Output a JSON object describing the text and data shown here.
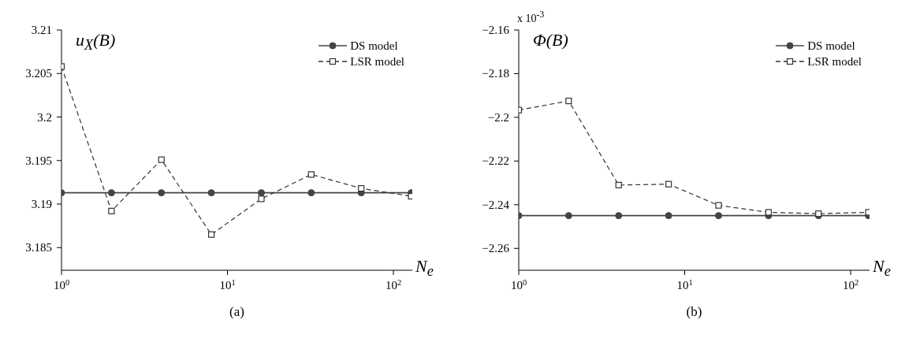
{
  "chart_data": [
    {
      "type": "line",
      "title": "(a)",
      "ylabel": "u$_{X}$(B)",
      "xlabel": "N$_{e}$",
      "log": "x",
      "grid": false,
      "legend": "top right",
      "x": [
        1,
        2,
        4,
        8,
        16,
        32,
        64,
        128
      ],
      "xlim": [
        1,
        130
      ],
      "xticks": [
        {
          "value": 1,
          "label": "10$^{0}$"
        },
        {
          "value": 10,
          "label": "10$^{1}$"
        },
        {
          "value": 100,
          "label": "10$^{2}$"
        }
      ],
      "ylim": [
        3.1824,
        3.21
      ],
      "yticks": [
        3.185,
        3.19,
        3.195,
        3.2,
        3.205,
        3.21
      ],
      "series": [
        {
          "name": "DS model",
          "color": "#444444",
          "marker": "circle",
          "line_style": "solid",
          "values": [
            3.1913,
            3.1913,
            3.1913,
            3.1913,
            3.1913,
            3.1913,
            3.1913,
            3.1913
          ]
        },
        {
          "name": "LSR model",
          "color": "#333333",
          "marker": "square",
          "line_style": "dashed",
          "values": [
            3.2058,
            3.1892,
            3.1951,
            3.1865,
            3.1906,
            3.1934,
            3.1918,
            3.1909
          ]
        }
      ]
    },
    {
      "type": "line",
      "title": "(b)",
      "ylabel": "Φ(B)",
      "xlabel": "N$_{e}$",
      "annotations": [
        "x 10$^{-3}$"
      ],
      "log": "x",
      "grid": false,
      "legend": "top right",
      "x": [
        1,
        2,
        4,
        8,
        16,
        32,
        64,
        128
      ],
      "xlim": [
        1,
        130
      ],
      "xticks": [
        {
          "value": 1,
          "label": "10$^{0}$"
        },
        {
          "value": 10,
          "label": "10$^{1}$"
        },
        {
          "value": 100,
          "label": "10$^{2}$"
        }
      ],
      "ylim": [
        -2.27,
        -2.16
      ],
      "yticks": [
        {
          "value": -2.26,
          "label": "−2.26"
        },
        {
          "value": -2.24,
          "label": "−2.24"
        },
        {
          "value": -2.22,
          "label": "−2.22"
        },
        {
          "value": -2.2,
          "label": "−2.2"
        },
        {
          "value": -2.18,
          "label": "−2.18"
        },
        {
          "value": -2.16,
          "label": "−2.16"
        }
      ],
      "series": [
        {
          "name": "DS model",
          "color": "#444444",
          "marker": "circle",
          "line_style": "solid",
          "values": [
            -2.245,
            -2.245,
            -2.245,
            -2.245,
            -2.245,
            -2.245,
            -2.245,
            -2.245
          ]
        },
        {
          "name": "LSR model",
          "color": "#333333",
          "marker": "square",
          "line_style": "dashed",
          "values": [
            -2.1967,
            -2.1925,
            -2.231,
            -2.2306,
            -2.2403,
            -2.2435,
            -2.2441,
            -2.2435
          ]
        }
      ]
    }
  ]
}
